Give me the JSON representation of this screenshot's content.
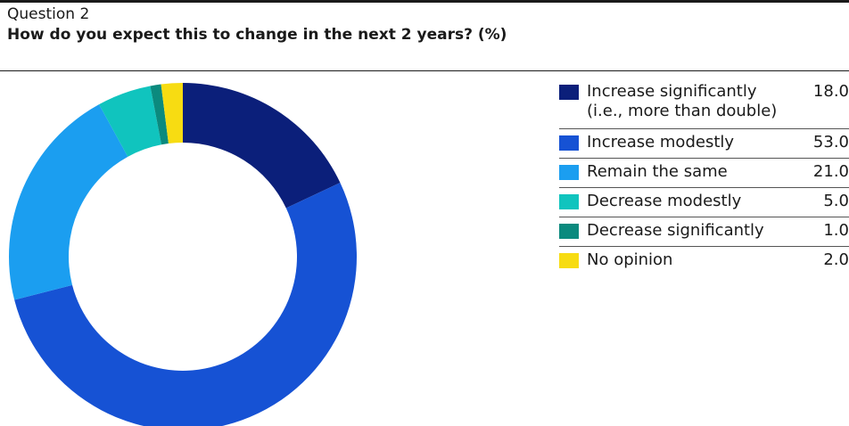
{
  "header": {
    "question_label": "Question 2",
    "question_title": "How do you expect this to change in the next 2 years? (%)"
  },
  "chart_data": {
    "type": "pie",
    "variant": "donut",
    "categories": [
      "Increase significantly (i.e., more than double)",
      "Increase modestly",
      "Remain the same",
      "Decrease modestly",
      "Decrease significantly",
      "No opinion"
    ],
    "values": [
      18.0,
      53.0,
      21.0,
      5.0,
      1.0,
      2.0
    ],
    "labels": [
      {
        "line1": "Increase significantly",
        "line2": "(i.e., more than double)",
        "value": "18.0"
      },
      {
        "line1": "Increase modestly",
        "line2": "",
        "value": "53.0"
      },
      {
        "line1": "Remain the same",
        "line2": "",
        "value": "21.0"
      },
      {
        "line1": "Decrease modestly",
        "line2": "",
        "value": "5.0"
      },
      {
        "line1": "Decrease significantly",
        "line2": "",
        "value": "1.0"
      },
      {
        "line1": "No opinion",
        "line2": "",
        "value": "2.0"
      }
    ],
    "colors": [
      "#0b1f7a",
      "#1652d4",
      "#1b9ef0",
      "#10c4be",
      "#0b8a7e",
      "#f7dc12"
    ],
    "legend_position": "right"
  }
}
